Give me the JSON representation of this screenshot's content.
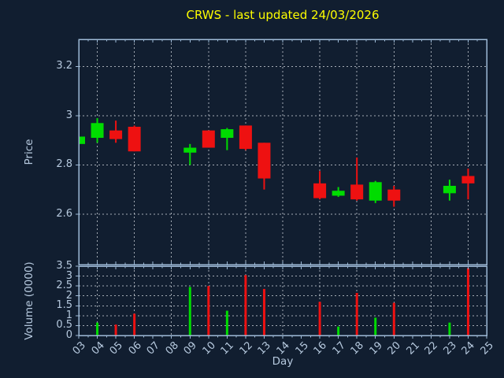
{
  "title": "CRWS - last updated 24/03/2026",
  "colors": {
    "background": "#111e30",
    "axis_line": "#9db9d6",
    "tick_text": "#b6c9de",
    "title_text": "#fdfd00",
    "grid": "#c9cfd6",
    "up_candle": "#00dc00",
    "down_candle": "#ee1111"
  },
  "chart_data": {
    "type": "candlestick_with_volume",
    "title": "CRWS - last updated 24/03/2026",
    "xlabel": "Day",
    "price_panel": {
      "ylabel": "Price",
      "ylim": [
        2.395,
        3.31
      ],
      "yticks": [
        {
          "v": 3.2,
          "label": "3.2"
        },
        {
          "v": 3.0,
          "label": "3"
        },
        {
          "v": 2.8,
          "label": "2.8"
        },
        {
          "v": 2.6,
          "label": "2.6"
        }
      ],
      "grid": true
    },
    "volume_panel": {
      "ylabel": "Volume (0000)",
      "ylim": [
        0,
        3.5
      ],
      "yticks": [
        {
          "v": 3.5,
          "label": "3.5"
        },
        {
          "v": 3.0,
          "label": "3"
        },
        {
          "v": 2.5,
          "label": "2.5"
        },
        {
          "v": 2.0,
          "label": "2"
        },
        {
          "v": 1.5,
          "label": "1.5"
        },
        {
          "v": 1.0,
          "label": "1"
        },
        {
          "v": 0.5,
          "label": "0.5"
        },
        {
          "v": 0.0,
          "label": "0"
        }
      ],
      "grid": true
    },
    "x_axis": {
      "first_day": 3,
      "last_day": 25,
      "tick_labels": [
        "03",
        "04",
        "05",
        "06",
        "07",
        "08",
        "09",
        "10",
        "11",
        "12",
        "13",
        "14",
        "15",
        "16",
        "17",
        "18",
        "19",
        "20",
        "21",
        "22",
        "23",
        "24",
        "25"
      ],
      "gridline_days": [
        4,
        6,
        8,
        10,
        12,
        14,
        16,
        18,
        20,
        22,
        24
      ]
    },
    "ohlcv": [
      {
        "day": "03",
        "open": 2.885,
        "high": 2.915,
        "low": 2.88,
        "close": 2.915,
        "volume": 0.0
      },
      {
        "day": "04",
        "open": 2.91,
        "high": 2.99,
        "low": 2.89,
        "close": 2.97,
        "volume": 0.65
      },
      {
        "day": "05",
        "open": 2.94,
        "high": 2.98,
        "low": 2.89,
        "close": 2.905,
        "volume": 0.55
      },
      {
        "day": "06",
        "open": 2.955,
        "high": 2.96,
        "low": 2.855,
        "close": 2.855,
        "volume": 1.1
      },
      {
        "day": "09",
        "open": 2.85,
        "high": 2.885,
        "low": 2.8,
        "close": 2.87,
        "volume": 2.45
      },
      {
        "day": "10",
        "open": 2.94,
        "high": 2.94,
        "low": 2.87,
        "close": 2.87,
        "volume": 2.5
      },
      {
        "day": "11",
        "open": 2.91,
        "high": 2.95,
        "low": 2.86,
        "close": 2.945,
        "volume": 1.25
      },
      {
        "day": "12",
        "open": 2.96,
        "high": 2.96,
        "low": 2.86,
        "close": 2.865,
        "volume": 3.05
      },
      {
        "day": "13",
        "open": 2.89,
        "high": 2.89,
        "low": 2.7,
        "close": 2.745,
        "volume": 2.35
      },
      {
        "day": "16",
        "open": 2.725,
        "high": 2.775,
        "low": 2.66,
        "close": 2.665,
        "volume": 1.7
      },
      {
        "day": "17",
        "open": 2.675,
        "high": 2.71,
        "low": 2.67,
        "close": 2.695,
        "volume": 0.45
      },
      {
        "day": "18",
        "open": 2.72,
        "high": 2.83,
        "low": 2.655,
        "close": 2.66,
        "volume": 2.15
      },
      {
        "day": "19",
        "open": 2.655,
        "high": 2.735,
        "low": 2.645,
        "close": 2.73,
        "volume": 0.9
      },
      {
        "day": "20",
        "open": 2.7,
        "high": 2.715,
        "low": 2.63,
        "close": 2.655,
        "volume": 1.65
      },
      {
        "day": "23",
        "open": 2.685,
        "high": 2.74,
        "low": 2.655,
        "close": 2.715,
        "volume": 0.65
      },
      {
        "day": "24",
        "open": 2.755,
        "high": 2.785,
        "low": 2.66,
        "close": 2.725,
        "volume": 3.4
      }
    ]
  }
}
